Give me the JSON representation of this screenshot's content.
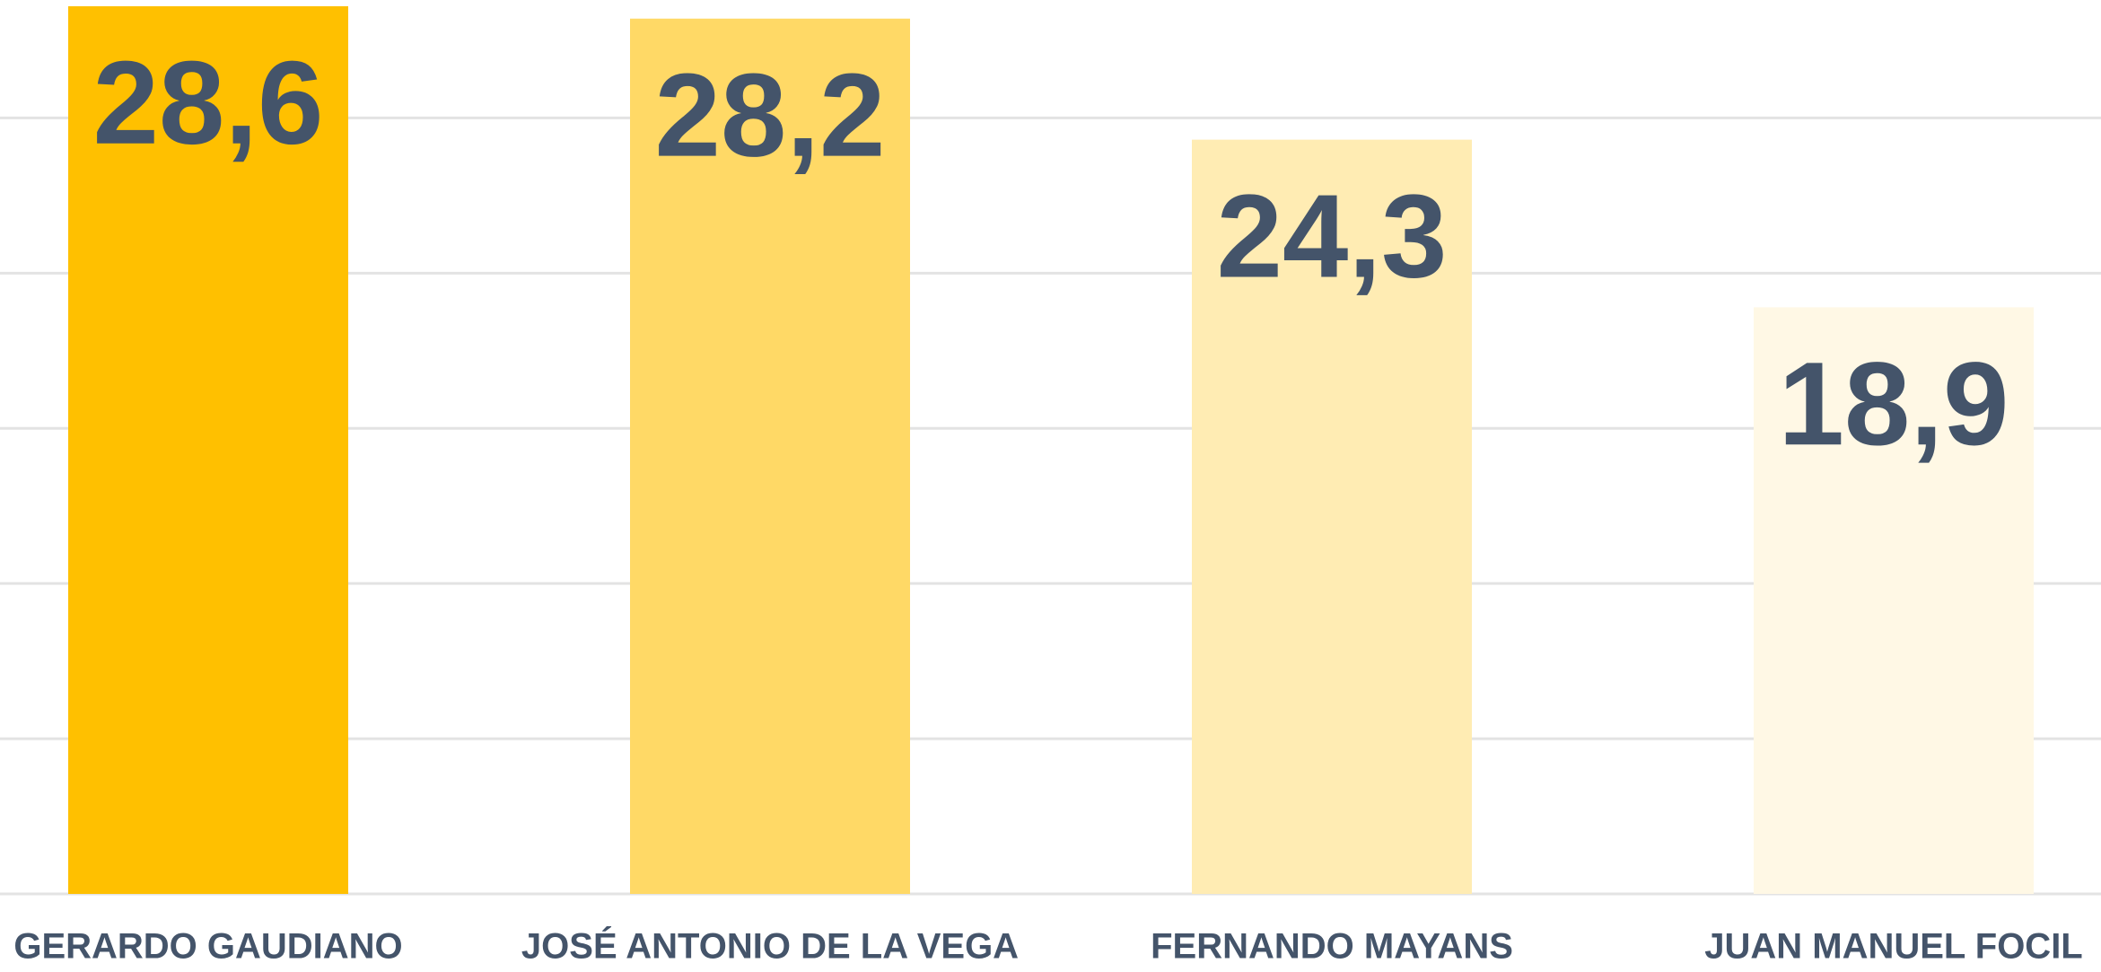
{
  "chart_data": {
    "type": "bar",
    "categories": [
      "GERARDO GAUDIANO",
      "JOSÉ ANTONIO DE LA VEGA",
      "FERNANDO MAYANS",
      "JUAN MANUEL FOCIL"
    ],
    "values": [
      28.6,
      28.2,
      24.3,
      18.9
    ],
    "value_labels": [
      "28,6",
      "28,2",
      "24,3",
      "18,9"
    ],
    "colors": [
      "#FFC000",
      "#FFD966",
      "#FFECB3",
      "#FFF8E5"
    ],
    "ylim": [
      0,
      28.8
    ],
    "yticks": [
      0,
      5,
      10,
      15,
      20,
      25
    ],
    "grid": true
  }
}
